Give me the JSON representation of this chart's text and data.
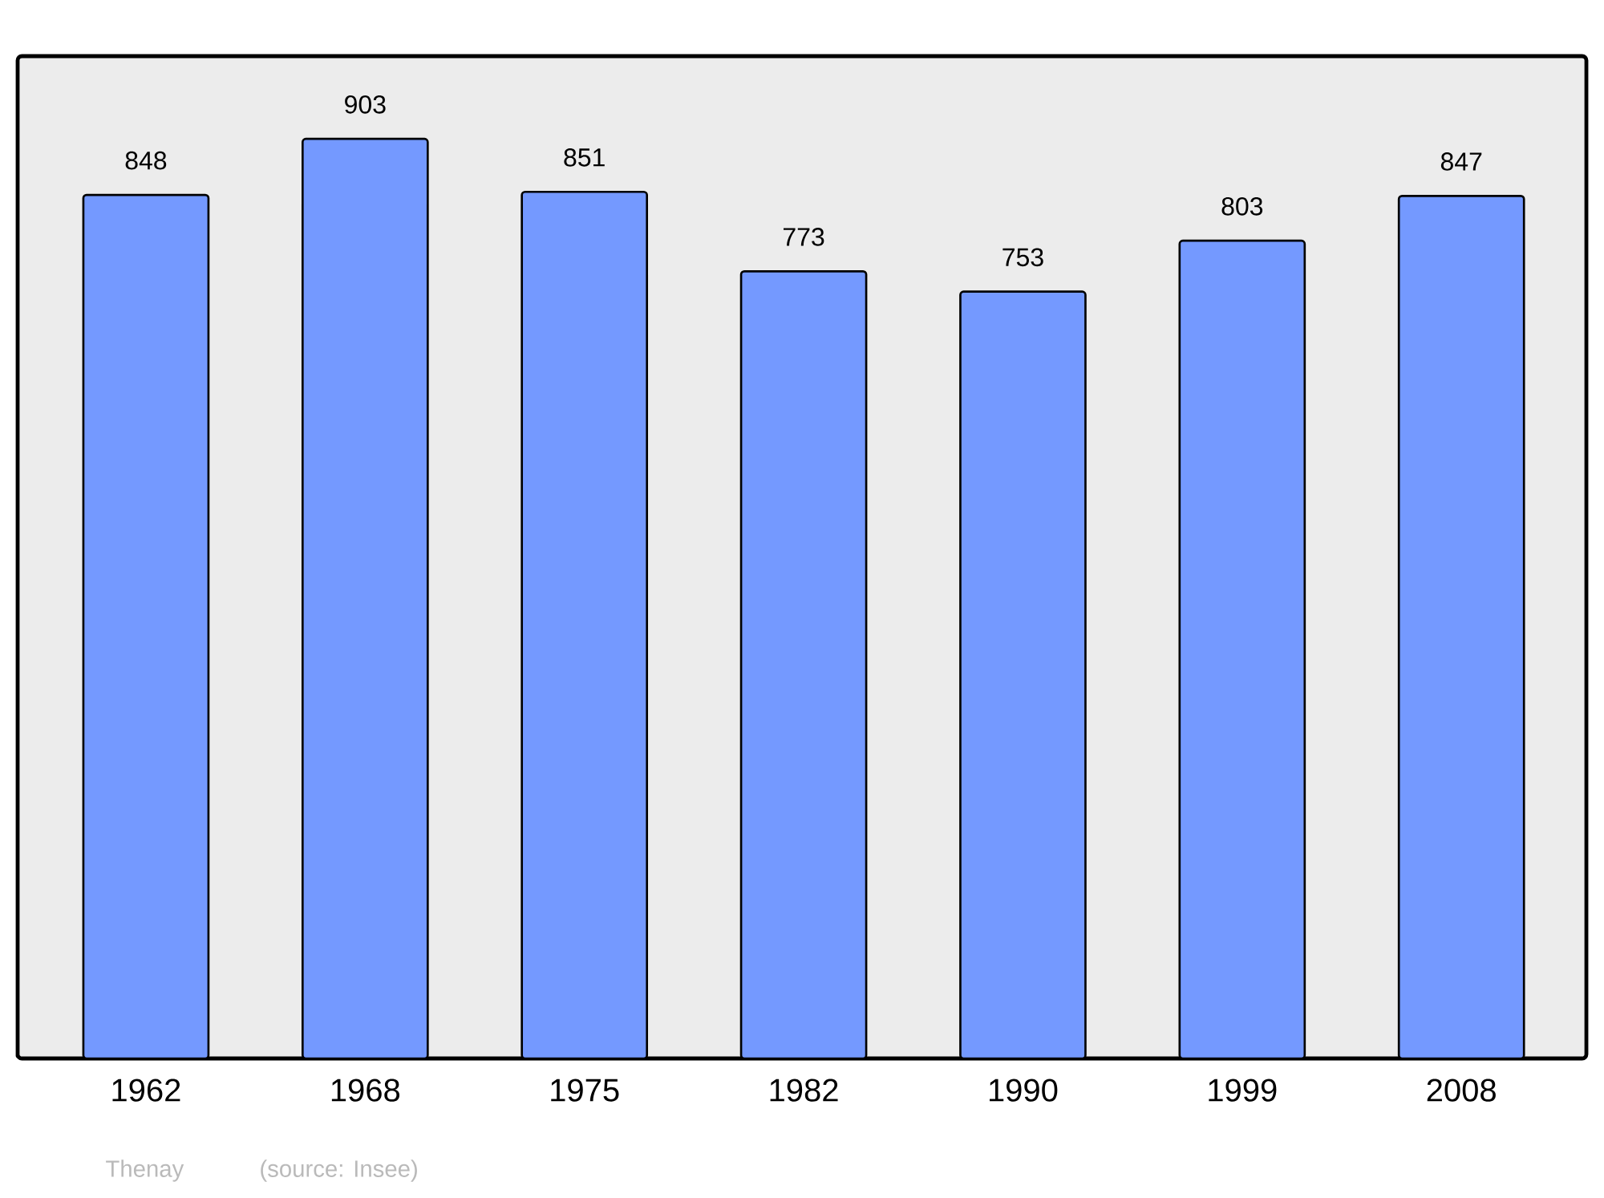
{
  "chart_data": {
    "type": "bar",
    "categories": [
      "1962",
      "1968",
      "1975",
      "1982",
      "1990",
      "1999",
      "2008"
    ],
    "values": [
      848,
      903,
      851,
      773,
      753,
      803,
      847
    ],
    "color": "#7499ff",
    "data_labels": true,
    "annotations": [
      "Thenay",
      "(source: Insee)"
    ]
  }
}
